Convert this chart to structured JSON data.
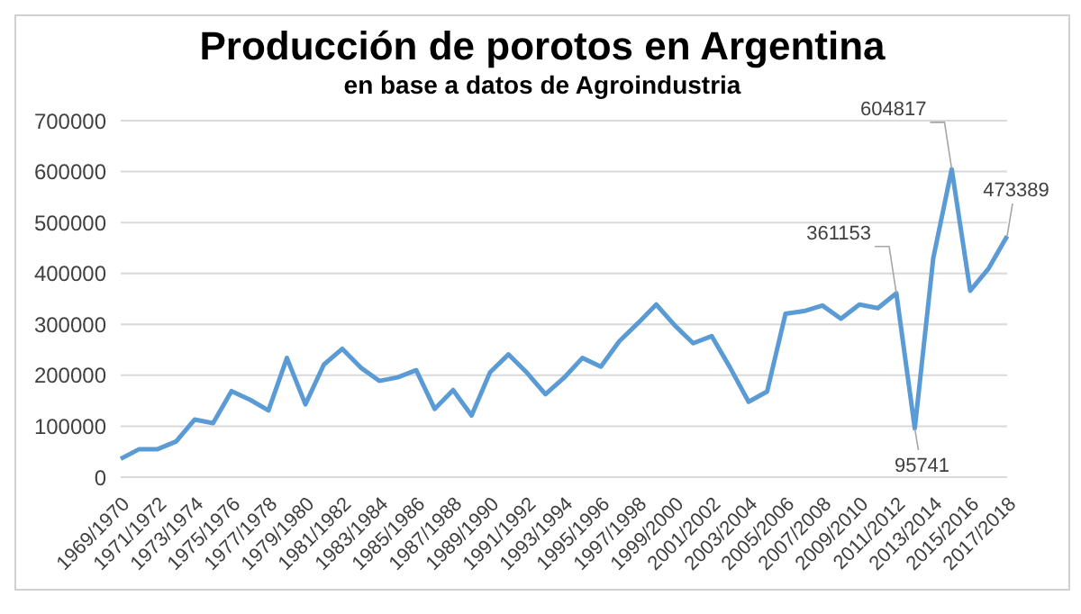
{
  "chart_data": {
    "type": "line",
    "title": "Producción de porotos en Argentina",
    "subtitle": "en base a datos de Agroindustria",
    "categories": [
      "1969/1970",
      null,
      "1971/1972",
      null,
      "1973/1974",
      null,
      "1975/1976",
      null,
      "1977/1978",
      null,
      "1979/1980",
      null,
      "1981/1982",
      null,
      "1983/1984",
      null,
      "1985/1986",
      null,
      "1987/1988",
      null,
      "1989/1990",
      null,
      "1991/1992",
      null,
      "1993/1994",
      null,
      "1995/1996",
      null,
      "1997/1998",
      null,
      "1999/2000",
      null,
      "2001/2002",
      null,
      "2003/2004",
      null,
      "2005/2006",
      null,
      "2007/2008",
      null,
      "2009/2010",
      null,
      "2011/2012",
      null,
      "2013/2014",
      null,
      "2015/2016",
      null,
      "2017/2018"
    ],
    "series": [
      {
        "color": "#5b9bd5",
        "values": [
          36000,
          55000,
          55000,
          70000,
          113000,
          106000,
          169000,
          152000,
          131000,
          234000,
          143000,
          221000,
          252000,
          215000,
          189000,
          196000,
          210000,
          134000,
          171000,
          121000,
          206000,
          241000,
          205000,
          163000,
          195000,
          234000,
          217000,
          267000,
          302000,
          339000,
          298000,
          263000,
          277000,
          215000,
          148000,
          168000,
          321000,
          326000,
          337000,
          311000,
          339000,
          332000,
          361153,
          95741,
          430000,
          604817,
          366000,
          410000,
          473389
        ],
        "value_labels": [
          null,
          null,
          null,
          null,
          null,
          null,
          null,
          null,
          null,
          null,
          null,
          null,
          null,
          null,
          null,
          null,
          null,
          null,
          null,
          null,
          null,
          null,
          null,
          null,
          null,
          null,
          null,
          null,
          null,
          null,
          null,
          null,
          null,
          null,
          null,
          null,
          null,
          null,
          null,
          null,
          null,
          null,
          "361153",
          "95741",
          null,
          "604817",
          null,
          null,
          "473389"
        ]
      }
    ],
    "ylim": [
      0,
      700000
    ],
    "yticks": [
      0,
      100000,
      200000,
      300000,
      400000,
      500000,
      600000,
      700000
    ],
    "grid": "y",
    "legend": false,
    "marker": "none",
    "line_style": "solid"
  }
}
